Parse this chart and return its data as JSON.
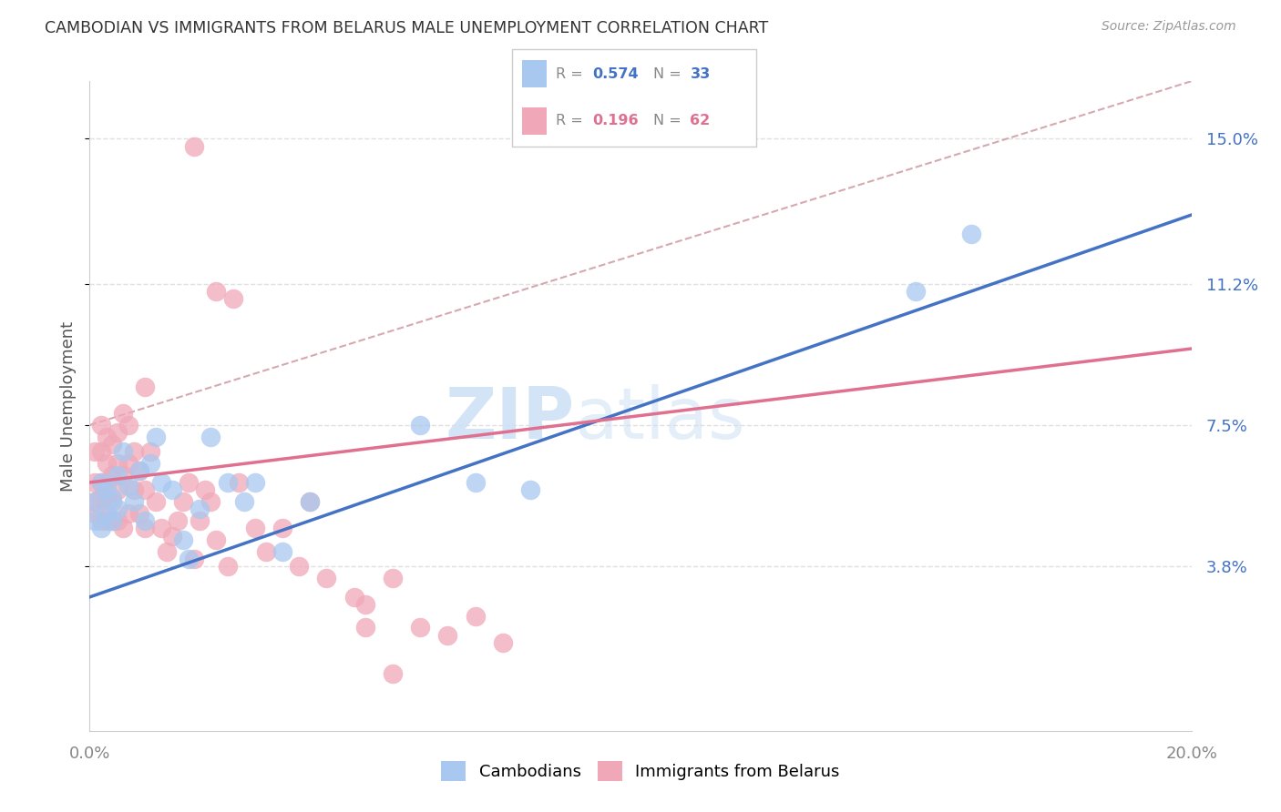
{
  "title": "CAMBODIAN VS IMMIGRANTS FROM BELARUS MALE UNEMPLOYMENT CORRELATION CHART",
  "source": "Source: ZipAtlas.com",
  "ylabel": "Male Unemployment",
  "watermark": "ZIPatlas",
  "xlim": [
    0.0,
    0.2
  ],
  "ylim": [
    -0.005,
    0.165
  ],
  "yticks": [
    0.038,
    0.075,
    0.112,
    0.15
  ],
  "ytick_labels": [
    "3.8%",
    "7.5%",
    "11.2%",
    "15.0%"
  ],
  "xticks": [
    0.0,
    0.05,
    0.1,
    0.15,
    0.2
  ],
  "xtick_labels": [
    "0.0%",
    "",
    "",
    "",
    "20.0%"
  ],
  "legend_r1": "0.574",
  "legend_n1": "33",
  "legend_r2": "0.196",
  "legend_n2": "62",
  "legend_label1": "Cambodians",
  "legend_label2": "Immigrants from Belarus",
  "color_blue": "#a8c8f0",
  "color_pink": "#f0a8b8",
  "color_blue_line": "#4472C4",
  "color_pink_line": "#e07090",
  "color_dashed": "#d0a0a8",
  "blue_line_x0": 0.0,
  "blue_line_y0": 0.03,
  "blue_line_x1": 0.2,
  "blue_line_y1": 0.13,
  "pink_line_x0": 0.0,
  "pink_line_y0": 0.06,
  "pink_line_x1": 0.2,
  "pink_line_y1": 0.095,
  "dash_line_x0": 0.0,
  "dash_line_y0": 0.075,
  "dash_line_x1": 0.2,
  "dash_line_y1": 0.165
}
